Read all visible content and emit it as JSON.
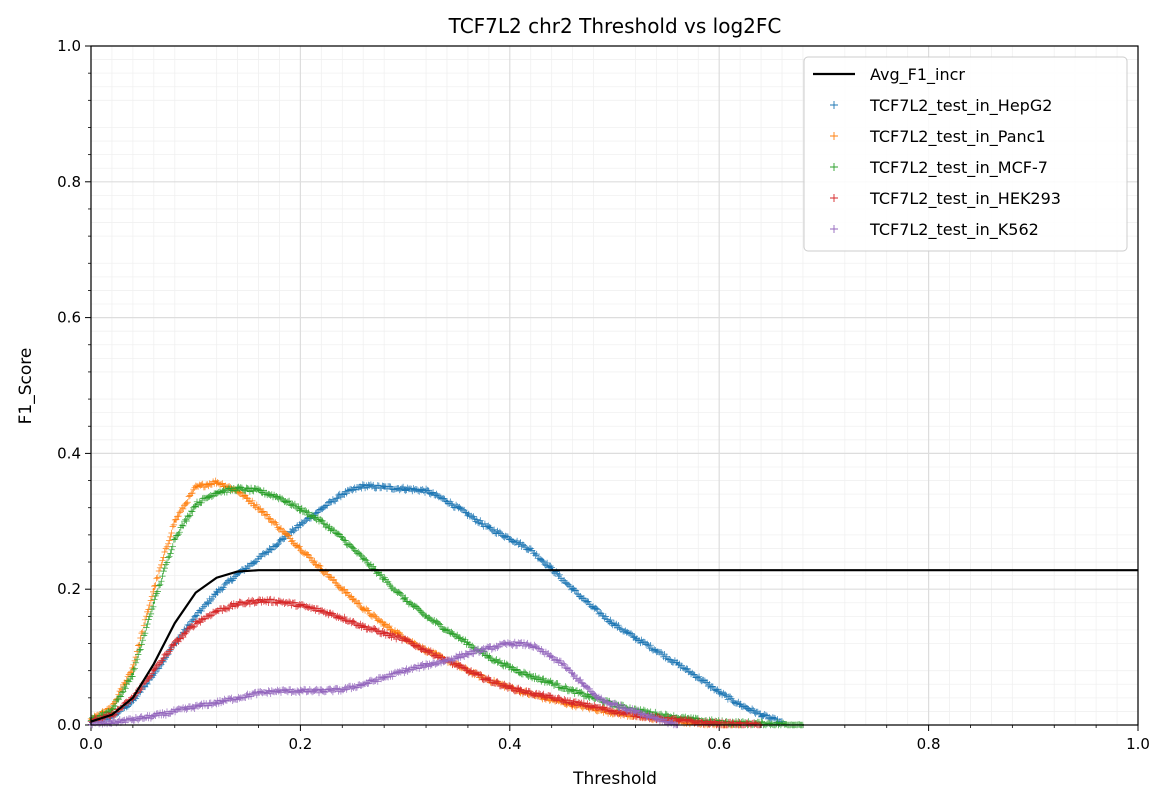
{
  "chart_data": {
    "type": "scatter",
    "title": "TCF7L2 chr2 Threshold vs log2FC",
    "xlabel": "Threshold",
    "ylabel": "F1_Score",
    "xlim": [
      0,
      1
    ],
    "ylim": [
      0,
      1
    ],
    "xticks": [
      "0.0",
      "0.2",
      "0.4",
      "0.6",
      "0.8",
      "1.0"
    ],
    "yticks": [
      "0.0",
      "0.2",
      "0.4",
      "0.6",
      "0.8",
      "1.0"
    ],
    "grid": true,
    "minor_grid": true,
    "legend_position": "top-right",
    "line": {
      "name": "Avg_F1_incr",
      "color": "#000000",
      "x": [
        0.0,
        0.02,
        0.04,
        0.06,
        0.08,
        0.1,
        0.12,
        0.14,
        0.16,
        0.18,
        0.2,
        0.4,
        0.6,
        0.8,
        1.0
      ],
      "y": [
        0.005,
        0.015,
        0.04,
        0.09,
        0.15,
        0.195,
        0.217,
        0.226,
        0.228,
        0.228,
        0.228,
        0.228,
        0.228,
        0.228,
        0.228
      ]
    },
    "series": [
      {
        "name": "TCF7L2_test_in_HepG2",
        "color": "#1f77b4",
        "x": [
          0.0,
          0.02,
          0.04,
          0.06,
          0.08,
          0.1,
          0.12,
          0.14,
          0.16,
          0.18,
          0.2,
          0.22,
          0.24,
          0.26,
          0.28,
          0.3,
          0.32,
          0.34,
          0.36,
          0.38,
          0.4,
          0.42,
          0.44,
          0.46,
          0.48,
          0.5,
          0.52,
          0.54,
          0.56,
          0.58,
          0.6,
          0.62,
          0.64,
          0.66
        ],
        "y": [
          0.004,
          0.012,
          0.035,
          0.075,
          0.12,
          0.16,
          0.195,
          0.222,
          0.245,
          0.27,
          0.295,
          0.318,
          0.34,
          0.352,
          0.35,
          0.348,
          0.345,
          0.33,
          0.31,
          0.29,
          0.275,
          0.258,
          0.23,
          0.2,
          0.172,
          0.148,
          0.128,
          0.11,
          0.09,
          0.07,
          0.048,
          0.03,
          0.015,
          0.003
        ]
      },
      {
        "name": "TCF7L2_test_in_Panc1",
        "color": "#ff7f0e",
        "x": [
          0.0,
          0.02,
          0.04,
          0.06,
          0.08,
          0.1,
          0.12,
          0.14,
          0.16,
          0.18,
          0.2,
          0.22,
          0.24,
          0.26,
          0.28,
          0.3,
          0.32,
          0.34,
          0.36,
          0.38,
          0.4,
          0.42,
          0.44,
          0.46,
          0.48,
          0.5,
          0.52,
          0.54,
          0.56,
          0.58,
          0.6,
          0.62
        ],
        "y": [
          0.008,
          0.025,
          0.085,
          0.2,
          0.3,
          0.35,
          0.358,
          0.345,
          0.32,
          0.29,
          0.26,
          0.23,
          0.2,
          0.172,
          0.148,
          0.128,
          0.11,
          0.095,
          0.08,
          0.066,
          0.055,
          0.045,
          0.037,
          0.03,
          0.024,
          0.018,
          0.013,
          0.009,
          0.005,
          0.003,
          0.001,
          0.0
        ]
      },
      {
        "name": "TCF7L2_test_in_MCF-7",
        "color": "#2ca02c",
        "x": [
          0.0,
          0.02,
          0.04,
          0.06,
          0.08,
          0.1,
          0.12,
          0.14,
          0.16,
          0.18,
          0.2,
          0.22,
          0.24,
          0.26,
          0.28,
          0.3,
          0.32,
          0.34,
          0.36,
          0.38,
          0.4,
          0.42,
          0.44,
          0.46,
          0.48,
          0.5,
          0.52,
          0.54,
          0.56,
          0.58,
          0.6,
          0.62,
          0.64,
          0.66,
          0.68
        ],
        "y": [
          0.007,
          0.022,
          0.075,
          0.18,
          0.275,
          0.325,
          0.343,
          0.348,
          0.345,
          0.335,
          0.318,
          0.3,
          0.275,
          0.245,
          0.215,
          0.185,
          0.16,
          0.14,
          0.12,
          0.1,
          0.085,
          0.072,
          0.062,
          0.05,
          0.04,
          0.03,
          0.022,
          0.016,
          0.011,
          0.007,
          0.004,
          0.003,
          0.002,
          0.001,
          0.0
        ]
      },
      {
        "name": "TCF7L2_test_in_HEK293",
        "color": "#d62728",
        "x": [
          0.0,
          0.02,
          0.04,
          0.06,
          0.08,
          0.1,
          0.12,
          0.14,
          0.16,
          0.18,
          0.2,
          0.22,
          0.24,
          0.26,
          0.28,
          0.3,
          0.32,
          0.34,
          0.36,
          0.38,
          0.4,
          0.42,
          0.44,
          0.46,
          0.48,
          0.5,
          0.52,
          0.54,
          0.56,
          0.58,
          0.6,
          0.62,
          0.64
        ],
        "y": [
          0.005,
          0.014,
          0.04,
          0.08,
          0.12,
          0.15,
          0.168,
          0.178,
          0.183,
          0.182,
          0.176,
          0.168,
          0.158,
          0.145,
          0.135,
          0.125,
          0.11,
          0.095,
          0.08,
          0.066,
          0.055,
          0.047,
          0.04,
          0.033,
          0.027,
          0.02,
          0.015,
          0.01,
          0.007,
          0.004,
          0.002,
          0.001,
          0.0
        ]
      },
      {
        "name": "TCF7L2_test_in_K562",
        "color": "#9467bd",
        "x": [
          0.0,
          0.02,
          0.04,
          0.06,
          0.08,
          0.1,
          0.12,
          0.14,
          0.16,
          0.18,
          0.2,
          0.22,
          0.24,
          0.26,
          0.28,
          0.3,
          0.32,
          0.34,
          0.36,
          0.38,
          0.4,
          0.42,
          0.44,
          0.45,
          0.46,
          0.47,
          0.48,
          0.49,
          0.5,
          0.52,
          0.54,
          0.56
        ],
        "y": [
          0.001,
          0.004,
          0.008,
          0.013,
          0.02,
          0.027,
          0.033,
          0.04,
          0.047,
          0.05,
          0.05,
          0.05,
          0.052,
          0.06,
          0.07,
          0.08,
          0.088,
          0.095,
          0.105,
          0.113,
          0.12,
          0.118,
          0.1,
          0.09,
          0.075,
          0.06,
          0.045,
          0.035,
          0.03,
          0.02,
          0.01,
          0.0
        ]
      }
    ]
  }
}
